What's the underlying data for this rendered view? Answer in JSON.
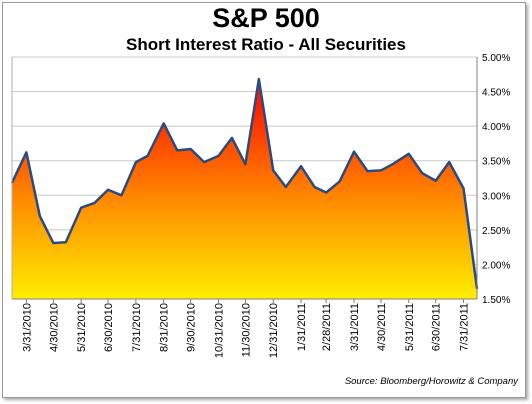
{
  "chart_data": {
    "type": "area",
    "title": "S&P 500",
    "subtitle": "Short Interest Ratio - All Securities",
    "source": "Source: Bloomberg/Horowitz & Company",
    "ylim": [
      0.015,
      0.05
    ],
    "yticks": [
      "1.50%",
      "2.00%",
      "2.50%",
      "3.00%",
      "3.50%",
      "4.00%",
      "4.50%",
      "5.00%"
    ],
    "ytick_values": [
      0.015,
      0.02,
      0.025,
      0.03,
      0.035,
      0.04,
      0.045,
      0.05
    ],
    "xtick_labels": [
      "3/31/2010",
      "4/30/2010",
      "5/31/2010",
      "6/30/2010",
      "7/31/2010",
      "8/31/2010",
      "9/30/2010",
      "10/31/2010",
      "11/30/2010",
      "12/31/2010",
      "1/31/2011",
      "2/28/2011",
      "3/31/2011",
      "4/30/2011",
      "5/31/2011",
      "6/30/2011",
      "7/31/2011"
    ],
    "y_axis_side": "right",
    "grid": "horizontal",
    "fill_gradient": [
      "#ff1a00",
      "#ffee00"
    ],
    "line_color": "#2b4a80",
    "series": [
      {
        "x": [
          "3/15/2010",
          "3/31/2010",
          "4/15/2010",
          "4/30/2010",
          "5/14/2010",
          "5/31/2010",
          "6/15/2010",
          "6/30/2010",
          "7/15/2010",
          "7/31/2010",
          "8/13/2010",
          "8/31/2010",
          "9/15/2010",
          "9/30/2010",
          "10/15/2010",
          "10/31/2010",
          "11/15/2010",
          "11/30/2010",
          "12/15/2010",
          "12/31/2010",
          "1/14/2011",
          "1/31/2011",
          "2/15/2011",
          "2/28/2011",
          "3/15/2011",
          "3/31/2011",
          "4/15/2011",
          "4/30/2011",
          "5/13/2011",
          "5/31/2011",
          "6/15/2011",
          "6/30/2011",
          "7/15/2011",
          "7/31/2011",
          "8/15/2011"
        ],
        "values": [
          0.0318,
          0.0362,
          0.027,
          0.0231,
          0.0232,
          0.0282,
          0.0289,
          0.0308,
          0.03,
          0.0348,
          0.0357,
          0.0404,
          0.0365,
          0.0367,
          0.0348,
          0.0357,
          0.0383,
          0.0345,
          0.0468,
          0.0336,
          0.0312,
          0.0342,
          0.0312,
          0.0304,
          0.032,
          0.0363,
          0.0335,
          0.0336,
          0.0345,
          0.036,
          0.0332,
          0.0321,
          0.0348,
          0.031,
          0.0165
        ]
      }
    ]
  }
}
